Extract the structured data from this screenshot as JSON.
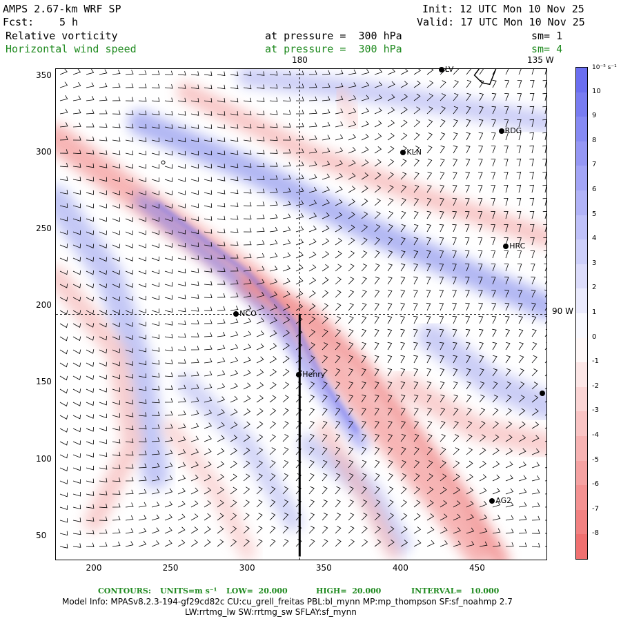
{
  "header": {
    "model": "AMPS 2.67-km WRF SP",
    "forecast_label": "Fcst:",
    "forecast_hours": "5 h",
    "init": "Init: 12 UTC Mon 10 Nov 25",
    "valid": "Valid: 17 UTC Mon 10 Nov 25",
    "field1": "Relative vorticity",
    "field2": "Horizontal wind speed",
    "pressure1": "at pressure =  300 hPa",
    "pressure2": "at pressure =  300 hPa",
    "sm1": "sm= 1",
    "sm2": "sm= 4"
  },
  "map": {
    "top_labels": {
      "lon_180": "180",
      "lon_135w": "135 W"
    },
    "right_label": "90 W",
    "x_ticks": [
      "200",
      "250",
      "300",
      "350",
      "400",
      "450"
    ],
    "y_ticks": [
      "350",
      "300",
      "250",
      "200",
      "150",
      "100",
      "50"
    ],
    "stations": [
      {
        "name": "RDG",
        "x": 466,
        "y": 314
      },
      {
        "name": "KLN",
        "x": 402,
        "y": 300
      },
      {
        "name": "HRC",
        "x": 469,
        "y": 239
      },
      {
        "name": "NCO",
        "x": 293,
        "y": 195
      },
      {
        "name": "Henry",
        "x": 334,
        "y": 155
      },
      {
        "name": "AG2",
        "x": 460,
        "y": 73
      },
      {
        "name": "LV",
        "x": 427,
        "y": 354
      }
    ],
    "cross_section": {
      "x": 334,
      "y_from": 37,
      "y_to": 195
    }
  },
  "colorbar": {
    "units": "10⁻⁵ s⁻¹",
    "labels": [
      "10",
      "9",
      "8",
      "7",
      "6",
      "5",
      "4",
      "3",
      "2",
      "1",
      "0",
      "-1",
      "-2",
      "-3",
      "-4",
      "-5",
      "-6",
      "-7",
      "-8"
    ],
    "colors": {
      "pos_max": "#6a6ef0",
      "neg_max": "#f07070",
      "zero": "#ffffff"
    }
  },
  "footer": {
    "contours_label": "CONTOURS:",
    "units": "UNITS=m s⁻¹",
    "low": "LOW=  20.000",
    "high": "HIGH=  20.000",
    "interval": "INTERVAL=   10.000",
    "model_info": "Model Info: MPASv8.2.3-194-gf29cd82c CU:cu_grell_freitas PBL:bl_mynn MP:mp_thompson SF:sf_noahmp 2.7",
    "model_info2": "LW:rrtmg_lw SW:rrtmg_sw SFLAY:sf_mynn"
  }
}
